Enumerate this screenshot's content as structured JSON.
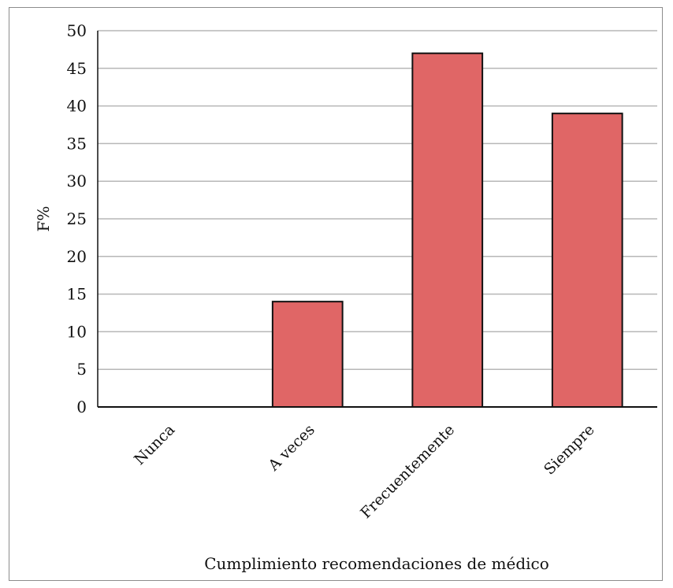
{
  "chart_data": {
    "type": "bar",
    "title": "",
    "xlabel": "Cumplimiento recomendaciones de médico",
    "ylabel": "F%",
    "categories": [
      "Nunca",
      "A veces",
      "Frecuentemente",
      "Siempre"
    ],
    "values": [
      0,
      14,
      47,
      39
    ],
    "ylim": [
      0,
      50
    ],
    "yticks": [
      0,
      5,
      10,
      15,
      20,
      25,
      30,
      35,
      40,
      45,
      50
    ],
    "grid": true,
    "legend": "none",
    "bar_color": "#e06666",
    "bar_edge_color": "#111111",
    "grid_color": "#b7b7b7"
  }
}
